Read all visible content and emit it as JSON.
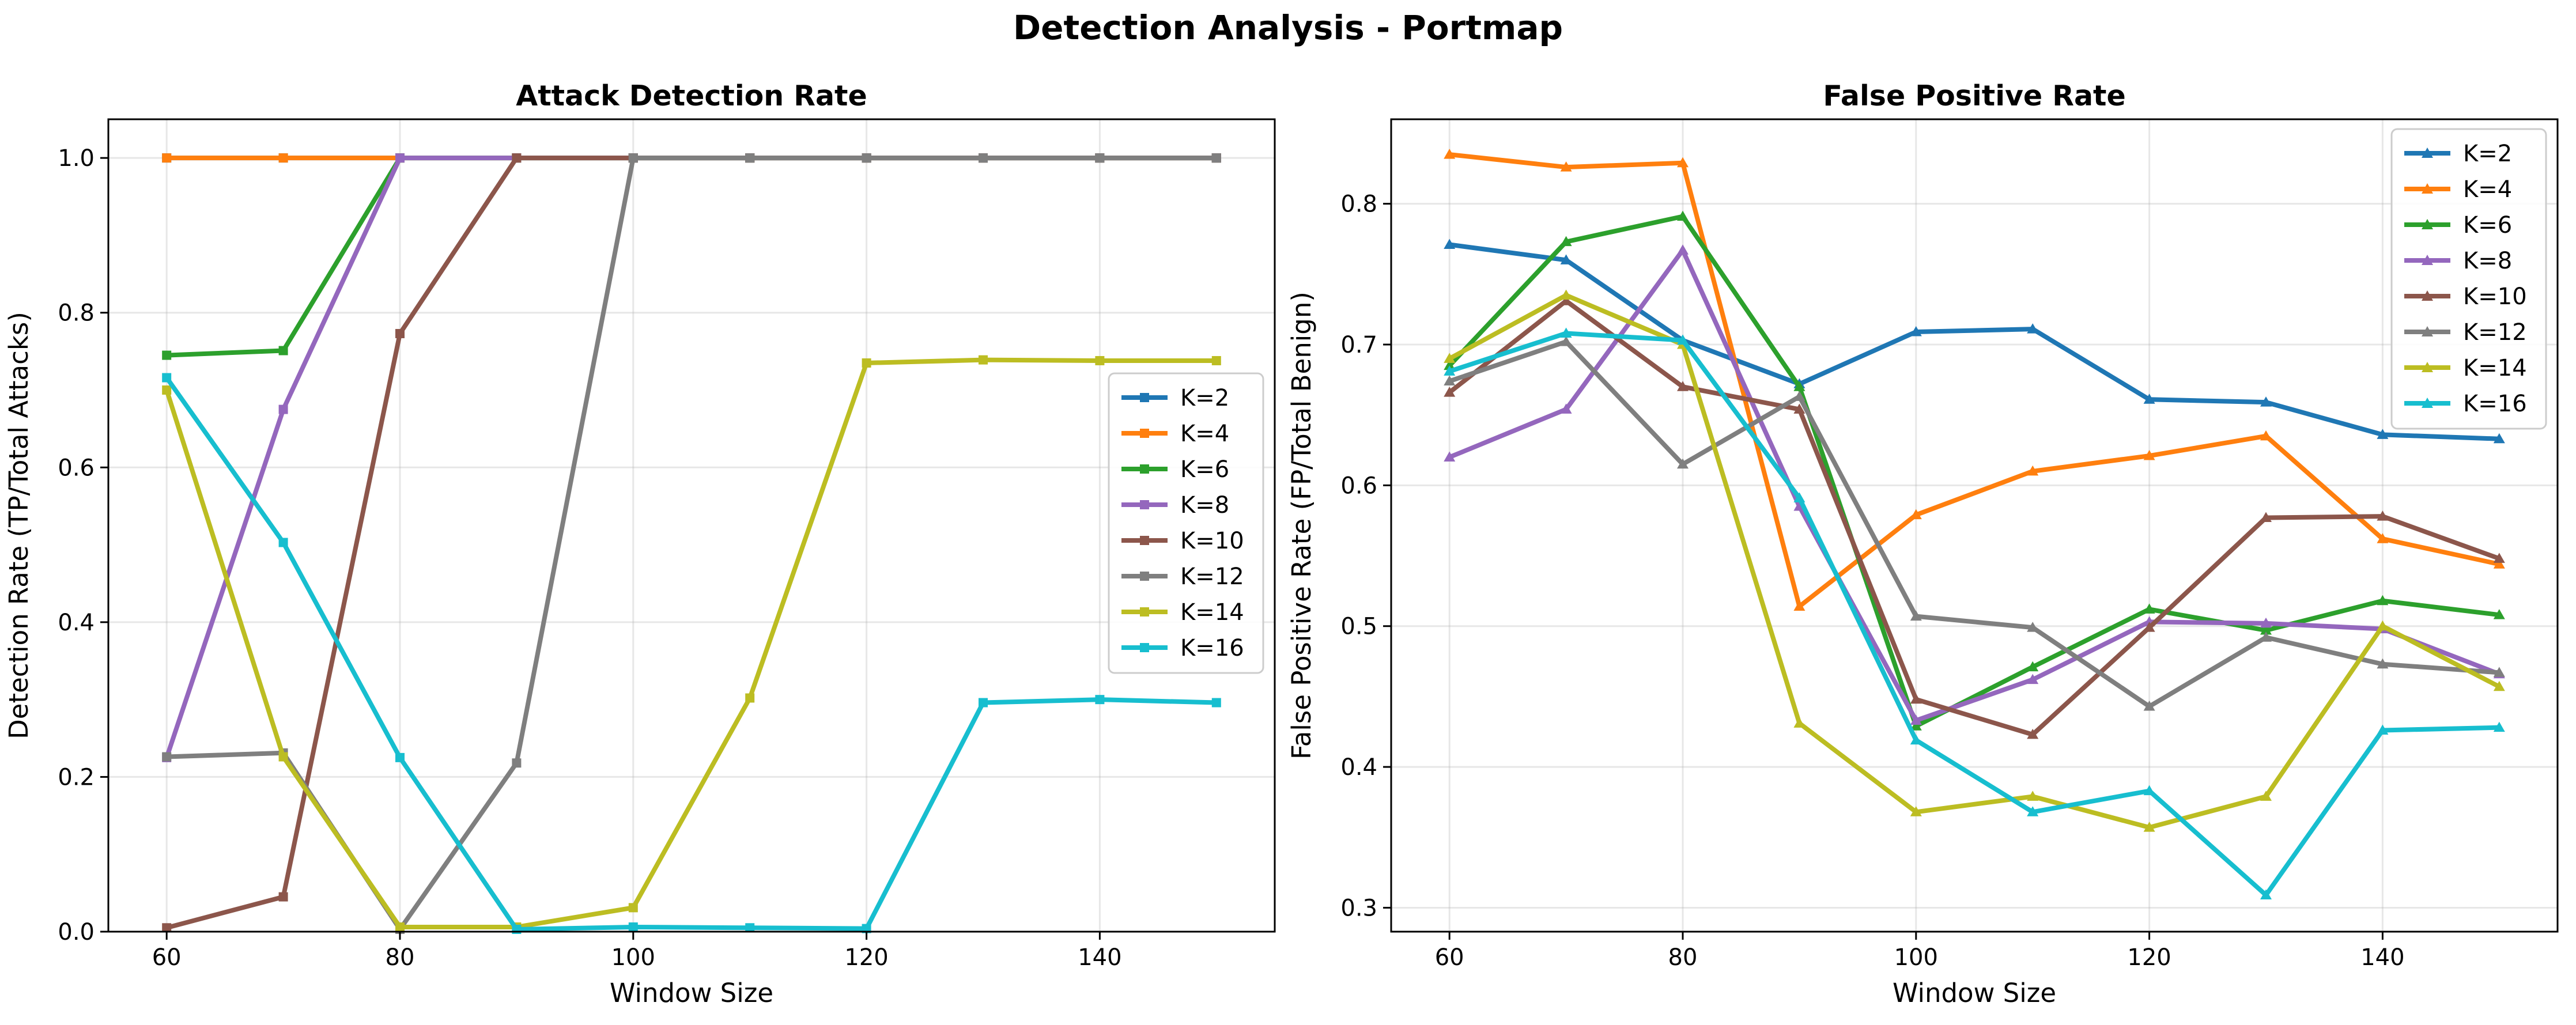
{
  "suptitle": "Detection Analysis - Portmap",
  "chart_data": [
    {
      "type": "line",
      "title": "Attack Detection Rate",
      "xlabel": "Window Size",
      "ylabel": "Detection Rate (TP/Total Attacks)",
      "x": [
        60,
        70,
        80,
        90,
        100,
        110,
        120,
        130,
        140,
        150
      ],
      "xlim": [
        55,
        155
      ],
      "ylim": [
        0,
        1.05
      ],
      "xticks": [
        60,
        80,
        100,
        120,
        140
      ],
      "yticks": [
        0.0,
        0.2,
        0.4,
        0.6,
        0.8,
        1.0
      ],
      "xtick_labels": [
        "60",
        "80",
        "100",
        "120",
        "140"
      ],
      "ytick_labels": [
        "0.0",
        "0.2",
        "0.4",
        "0.6",
        "0.8",
        "1.0"
      ],
      "marker": "square",
      "grid": true,
      "legend_position": "center-right",
      "series": [
        {
          "name": "K=2",
          "color": "#1f77b4",
          "values": [
            1.0,
            1.0,
            1.0,
            1.0,
            1.0,
            1.0,
            1.0,
            1.0,
            1.0,
            1.0
          ]
        },
        {
          "name": "K=4",
          "color": "#ff7f0e",
          "values": [
            1.0,
            1.0,
            1.0,
            1.0,
            1.0,
            1.0,
            1.0,
            1.0,
            1.0,
            1.0
          ]
        },
        {
          "name": "K=6",
          "color": "#2ca02c",
          "values": [
            0.745,
            0.751,
            1.0,
            1.0,
            1.0,
            1.0,
            1.0,
            1.0,
            1.0,
            1.0
          ]
        },
        {
          "name": "K=8",
          "color": "#9467bd",
          "values": [
            0.225,
            0.675,
            1.0,
            1.0,
            1.0,
            1.0,
            1.0,
            1.0,
            1.0,
            1.0
          ]
        },
        {
          "name": "K=10",
          "color": "#8c564b",
          "values": [
            0.005,
            0.045,
            0.773,
            1.0,
            1.0,
            1.0,
            1.0,
            1.0,
            1.0,
            1.0
          ]
        },
        {
          "name": "K=12",
          "color": "#7f7f7f",
          "values": [
            0.226,
            0.231,
            0.003,
            0.218,
            1.0,
            1.0,
            1.0,
            1.0,
            1.0,
            1.0
          ]
        },
        {
          "name": "K=14",
          "color": "#bcbd22",
          "values": [
            0.7,
            0.226,
            0.006,
            0.006,
            0.031,
            0.302,
            0.735,
            0.739,
            0.738,
            0.738
          ]
        },
        {
          "name": "K=16",
          "color": "#17becf",
          "values": [
            0.716,
            0.503,
            0.225,
            0.003,
            0.006,
            0.005,
            0.004,
            0.296,
            0.3,
            0.296
          ]
        }
      ]
    },
    {
      "type": "line",
      "title": "False Positive Rate",
      "xlabel": "Window Size",
      "ylabel": "False Positive Rate (FP/Total Benign)",
      "x": [
        60,
        70,
        80,
        90,
        100,
        110,
        120,
        130,
        140,
        150
      ],
      "xlim": [
        55,
        155
      ],
      "ylim": [
        0.283,
        0.86
      ],
      "xticks": [
        60,
        80,
        100,
        120,
        140
      ],
      "yticks": [
        0.3,
        0.4,
        0.5,
        0.6,
        0.7,
        0.8
      ],
      "xtick_labels": [
        "60",
        "80",
        "100",
        "120",
        "140"
      ],
      "ytick_labels": [
        "0.3",
        "0.4",
        "0.5",
        "0.6",
        "0.7",
        "0.8"
      ],
      "marker": "triangle",
      "grid": true,
      "legend_position": "upper-right",
      "series": [
        {
          "name": "K=2",
          "color": "#1f77b4",
          "values": [
            0.771,
            0.76,
            0.703,
            0.672,
            0.709,
            0.711,
            0.661,
            0.659,
            0.636,
            0.633
          ]
        },
        {
          "name": "K=4",
          "color": "#ff7f0e",
          "values": [
            0.835,
            0.826,
            0.829,
            0.514,
            0.579,
            0.61,
            0.621,
            0.635,
            0.562,
            0.544
          ]
        },
        {
          "name": "K=6",
          "color": "#2ca02c",
          "values": [
            0.685,
            0.773,
            0.791,
            0.67,
            0.429,
            0.471,
            0.512,
            0.497,
            0.518,
            0.508
          ]
        },
        {
          "name": "K=8",
          "color": "#9467bd",
          "values": [
            0.62,
            0.654,
            0.767,
            0.585,
            0.433,
            0.462,
            0.503,
            0.502,
            0.498,
            0.466
          ]
        },
        {
          "name": "K=10",
          "color": "#8c564b",
          "values": [
            0.666,
            0.731,
            0.67,
            0.654,
            0.448,
            0.423,
            0.499,
            0.577,
            0.578,
            0.548
          ]
        },
        {
          "name": "K=12",
          "color": "#7f7f7f",
          "values": [
            0.674,
            0.702,
            0.615,
            0.663,
            0.507,
            0.499,
            0.443,
            0.492,
            0.473,
            0.467
          ]
        },
        {
          "name": "K=14",
          "color": "#bcbd22",
          "values": [
            0.69,
            0.735,
            0.7,
            0.431,
            0.368,
            0.379,
            0.357,
            0.379,
            0.5,
            0.457
          ]
        },
        {
          "name": "K=16",
          "color": "#17becf",
          "values": [
            0.681,
            0.708,
            0.703,
            0.591,
            0.419,
            0.368,
            0.383,
            0.309,
            0.426,
            0.428
          ]
        }
      ]
    }
  ]
}
